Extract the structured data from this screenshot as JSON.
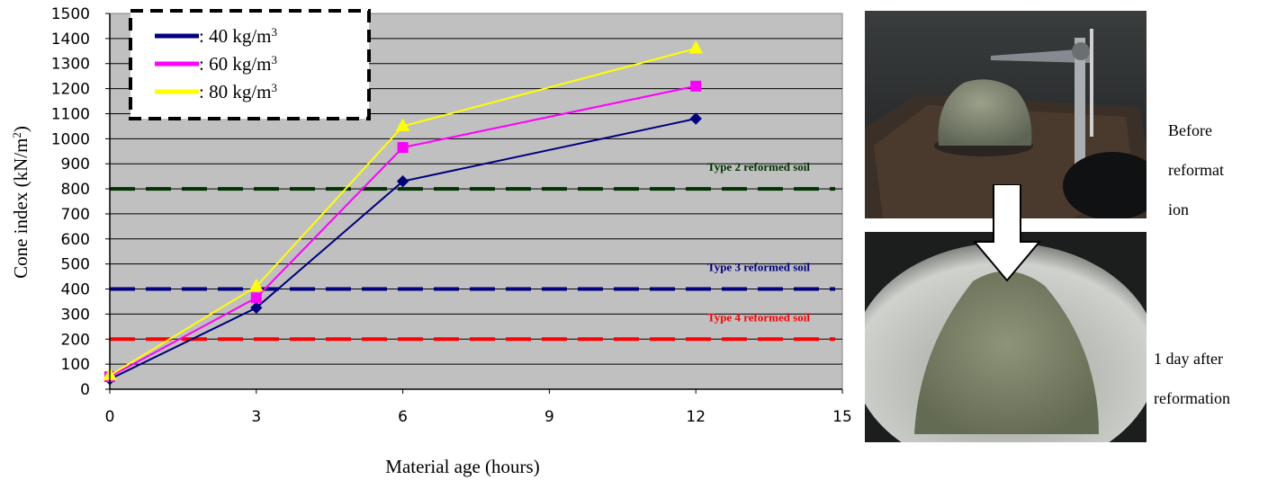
{
  "chart_data": {
    "type": "line",
    "xlabel": "Material age (hours)",
    "ylabel_main": "Cone index (kN/m",
    "ylabel_sup": "2",
    "ylabel_tail": ")",
    "xlim": [
      0,
      15
    ],
    "ylim": [
      0,
      1500
    ],
    "xticks": [
      "0",
      "3",
      "6",
      "9",
      "12",
      "15"
    ],
    "yticks": [
      "0",
      "100",
      "200",
      "300",
      "400",
      "500",
      "600",
      "700",
      "800",
      "900",
      "1000",
      "1100",
      "1200",
      "1300",
      "1400",
      "1500"
    ],
    "grid": "horizontal",
    "legend_position": "top-left",
    "series": [
      {
        "name": ": 40 kg/m",
        "sup": "3",
        "color": "#00007f",
        "marker": "diamond",
        "x": [
          0,
          3,
          6,
          12
        ],
        "y": [
          40,
          325,
          830,
          1080
        ]
      },
      {
        "name": ": 60 kg/m",
        "sup": "3",
        "color": "#ff00ff",
        "marker": "square",
        "x": [
          0,
          3,
          6,
          12
        ],
        "y": [
          50,
          365,
          965,
          1210
        ]
      },
      {
        "name": ": 80 kg/m",
        "sup": "3",
        "color": "#ffff00",
        "marker": "triangle",
        "x": [
          0,
          3,
          6,
          12
        ],
        "y": [
          55,
          410,
          1050,
          1360
        ]
      }
    ],
    "reference_lines": [
      {
        "label": "Type 2 reformed soil",
        "value": 800,
        "color": "#003300"
      },
      {
        "label": "Type 3 reformed soil",
        "value": 400,
        "color": "#000080"
      },
      {
        "label": "Type 4 reformed soil",
        "value": 200,
        "color": "#ff0000"
      }
    ]
  },
  "photos": {
    "before_caption_lines": [
      "Before",
      "reformat",
      "ion"
    ],
    "after_caption_lines": [
      "1 day after",
      "reformation"
    ]
  }
}
